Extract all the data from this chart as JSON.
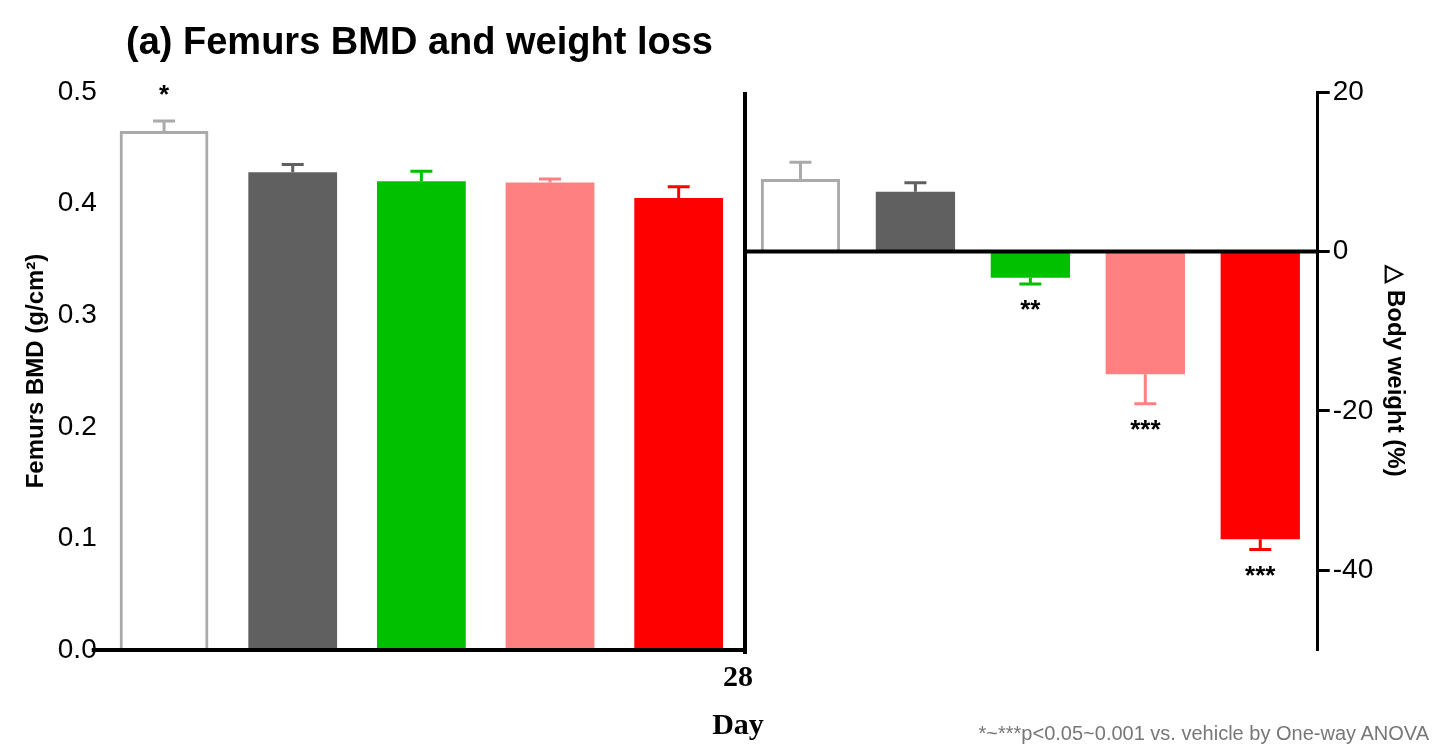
{
  "chart_data": [
    {
      "type": "bar",
      "title": "(a) Femurs BMD and weight loss",
      "xlabel": "Day",
      "ylabel": "Femurs BMD (g/cm²)",
      "categories": [
        null,
        null,
        null,
        null,
        null
      ],
      "values": [
        0.465,
        0.428,
        0.42,
        0.419,
        0.405
      ],
      "colors": [
        "#aaaaaa",
        "#606060",
        "#00c000",
        "#ff8080",
        "#ff0000"
      ],
      "errors": [
        [
          0.465,
          0.474
        ],
        [
          0.428,
          0.435
        ],
        [
          0.42,
          0.429
        ],
        [
          0.419,
          0.422
        ],
        [
          0.405,
          0.415
        ]
      ],
      "ylim": [
        0,
        0.5
      ],
      "yticks": [
        {
          "value": 0,
          "label": "0.0"
        },
        0.1,
        0.2,
        0.3,
        0.4,
        0.5
      ],
      "annotations": [
        "*",
        "28"
      ],
      "tick_labels": "y",
      "legend": false,
      "grid": false
    },
    {
      "type": "bar",
      "ylabel": "△ Body weight (%)",
      "categories": [
        null,
        null,
        null,
        null,
        null
      ],
      "values": [
        9.1,
        7.5,
        -3.3,
        -15.4,
        -36.1
      ],
      "colors": [
        "#aaaaaa",
        "#606060",
        "#00c000",
        "#ff8080",
        "#ff0000"
      ],
      "errors": [
        [
          9.1,
          11.2
        ],
        [
          7.5,
          8.6
        ],
        [
          -4.1,
          -3.3
        ],
        [
          -19.1,
          -15.4
        ],
        [
          -37.4,
          -36.1
        ]
      ],
      "ylim": [
        -50,
        20
      ],
      "yticks": [
        -40,
        -20,
        0,
        20
      ],
      "ref_lines": [
        {
          "axis": "y",
          "value": 0,
          "color": "#000000"
        }
      ],
      "annotations": [
        "**",
        "***",
        "***",
        "*~***p<0.05~0.001 vs. vehicle by One-way ANOVA"
      ],
      "tick_labels": "y",
      "legend": false,
      "grid": false
    }
  ]
}
